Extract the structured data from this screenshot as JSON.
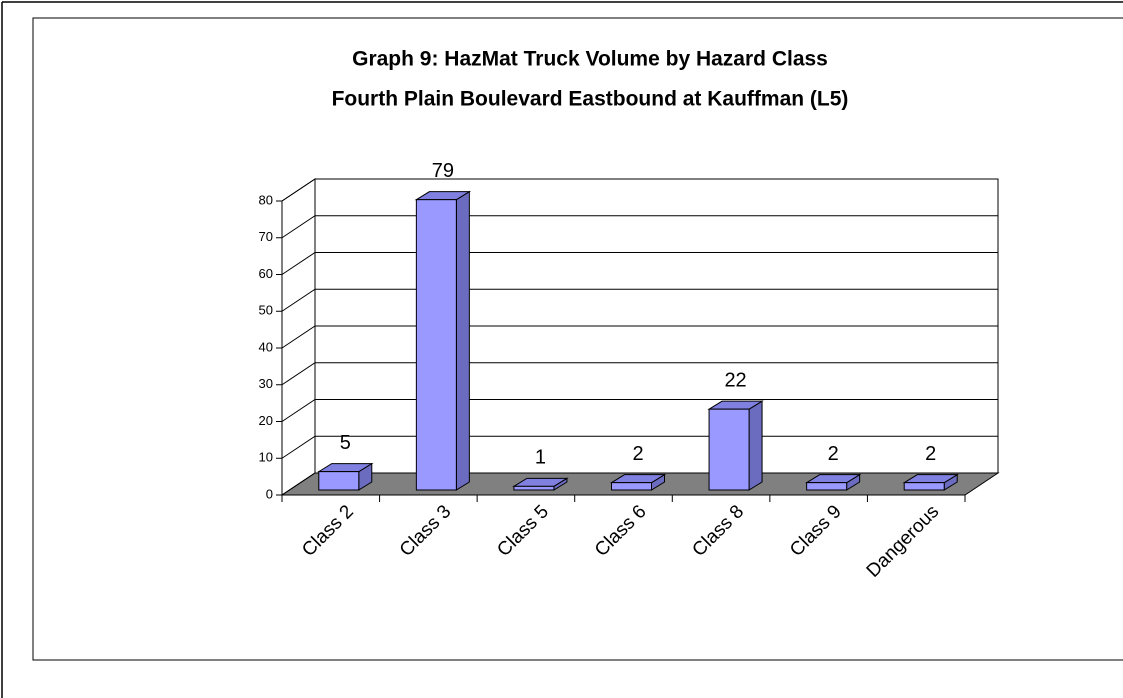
{
  "chart_data": {
    "type": "bar3d",
    "title": "Graph 9: HazMat Truck Volume by Hazard Class",
    "subtitle": "Fourth Plain Boulevard Eastbound at Kauffman (L5)",
    "categories": [
      "Class 2",
      "Class 3",
      "Class 5",
      "Class 6",
      "Class 8",
      "Class 9",
      "Dangerous"
    ],
    "values": [
      5,
      79,
      1,
      2,
      22,
      2,
      2
    ],
    "color": "#9999ff",
    "ylim": [
      0,
      80
    ],
    "yticks": [
      0,
      10,
      20,
      30,
      40,
      50,
      60,
      70,
      80
    ],
    "grid": true
  }
}
